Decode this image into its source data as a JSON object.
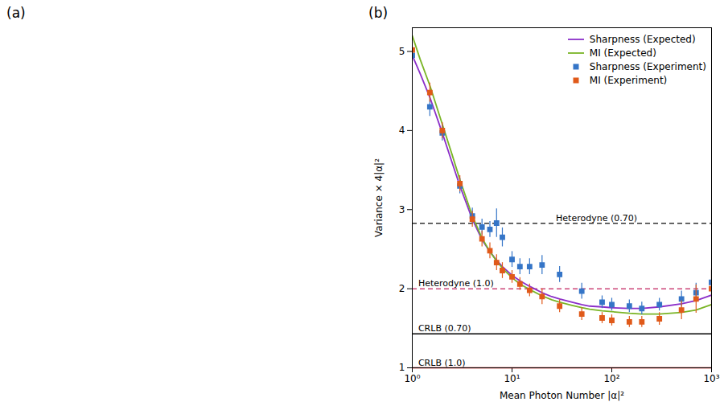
{
  "chart_data": {
    "type": "line",
    "annotations": [
      "(a)",
      "(b)"
    ],
    "xlabel": "Mean Photon Number |α|²",
    "ylabel": "Variance × 4|α|²",
    "log": "x",
    "xlim": [
      1,
      1000
    ],
    "xticks": [
      {
        "value": 1,
        "label": "10⁰"
      },
      {
        "value": 10,
        "label": "10¹"
      },
      {
        "value": 100,
        "label": "10²"
      },
      {
        "value": 1000,
        "label": "10³"
      }
    ],
    "ylim": [
      1.0,
      5.3
    ],
    "yticks": [
      1,
      2,
      3,
      4,
      5
    ],
    "grid": false,
    "legend": "upper right",
    "reference_lines": [
      {
        "label": "CRLB (1.0)",
        "value": 1.0,
        "color": "#cc0000",
        "line_style": "solid"
      },
      {
        "label": "CRLB (0.70)",
        "value": 1.43,
        "color": "#000000",
        "line_style": "solid"
      },
      {
        "label": "Heterodyne (1.0)",
        "value": 2.0,
        "color": "#cc4477",
        "line_style": "dashed"
      },
      {
        "label": "Heterodyne (0.70)",
        "value": 2.828,
        "color": "#333333",
        "line_style": "dashed"
      }
    ],
    "series": [
      {
        "name": "Sharpness (Expected)",
        "type": "line",
        "color": "#8B2FC9",
        "x": [
          1.0,
          1.2,
          1.5,
          2.0,
          2.5,
          3.0,
          4.0,
          5.0,
          6.0,
          7.0,
          8.0,
          10.0,
          12.0,
          15.0,
          20.0,
          25.0,
          30.0,
          40.0,
          50.0,
          60.0,
          80.0,
          100.0,
          150.0,
          200.0,
          300.0,
          500.0,
          700.0,
          1000.0
        ],
        "values": [
          4.95,
          4.72,
          4.42,
          3.97,
          3.6,
          3.3,
          2.88,
          2.62,
          2.47,
          2.36,
          2.28,
          2.17,
          2.1,
          2.03,
          1.95,
          1.9,
          1.87,
          1.83,
          1.8,
          1.78,
          1.77,
          1.76,
          1.75,
          1.75,
          1.77,
          1.81,
          1.85,
          1.92
        ]
      },
      {
        "name": "MI (Expected)",
        "type": "line",
        "color": "#7ab526",
        "x": [
          1.0,
          1.2,
          1.5,
          2.0,
          2.5,
          3.0,
          4.0,
          5.0,
          6.0,
          7.0,
          8.0,
          10.0,
          12.0,
          15.0,
          20.0,
          25.0,
          30.0,
          40.0,
          50.0,
          60.0,
          80.0,
          100.0,
          150.0,
          200.0,
          300.0,
          500.0,
          700.0,
          1000.0
        ],
        "values": [
          5.2,
          4.9,
          4.57,
          4.08,
          3.7,
          3.38,
          2.92,
          2.64,
          2.47,
          2.35,
          2.26,
          2.14,
          2.06,
          1.99,
          1.91,
          1.86,
          1.83,
          1.79,
          1.76,
          1.74,
          1.72,
          1.71,
          1.69,
          1.68,
          1.68,
          1.7,
          1.73,
          1.8
        ]
      },
      {
        "name": "Sharpness (Experiment)",
        "type": "scatter",
        "marker": "square",
        "color": "#3575c7",
        "x": [
          1.0,
          1.5,
          2.0,
          3.0,
          4.0,
          5.0,
          6.0,
          7.0,
          8.0,
          10.0,
          12.0,
          15.0,
          20.0,
          30.0,
          50.0,
          80.0,
          100.0,
          150.0,
          200.0,
          300.0,
          500.0,
          700.0,
          1000.0
        ],
        "values": [
          4.95,
          4.3,
          3.97,
          3.3,
          2.92,
          2.78,
          2.75,
          2.83,
          2.65,
          2.37,
          2.28,
          2.28,
          2.3,
          2.18,
          1.97,
          1.83,
          1.8,
          1.78,
          1.75,
          1.8,
          1.87,
          1.95,
          2.08
        ],
        "errors": [
          0.08,
          0.12,
          0.1,
          0.1,
          0.1,
          0.1,
          0.1,
          0.18,
          0.12,
          0.1,
          0.1,
          0.1,
          0.12,
          0.1,
          0.1,
          0.08,
          0.08,
          0.08,
          0.08,
          0.08,
          0.1,
          0.12,
          0.15
        ]
      },
      {
        "name": "MI (Experiment)",
        "type": "scatter",
        "marker": "square",
        "color": "#e05a1a",
        "x": [
          1.0,
          1.5,
          2.0,
          3.0,
          4.0,
          5.0,
          6.0,
          7.0,
          8.0,
          10.0,
          12.0,
          15.0,
          20.0,
          30.0,
          50.0,
          80.0,
          100.0,
          150.0,
          200.0,
          300.0,
          500.0,
          700.0,
          1000.0
        ],
        "values": [
          5.02,
          4.48,
          4.0,
          3.33,
          2.88,
          2.63,
          2.48,
          2.33,
          2.23,
          2.15,
          2.06,
          1.98,
          1.9,
          1.78,
          1.68,
          1.63,
          1.6,
          1.58,
          1.58,
          1.62,
          1.73,
          1.87,
          2.0
        ],
        "errors": [
          0.1,
          0.12,
          0.1,
          0.1,
          0.1,
          0.1,
          0.1,
          0.1,
          0.1,
          0.08,
          0.08,
          0.08,
          0.1,
          0.08,
          0.08,
          0.07,
          0.07,
          0.07,
          0.07,
          0.08,
          0.12,
          0.18,
          0.25
        ]
      }
    ]
  }
}
